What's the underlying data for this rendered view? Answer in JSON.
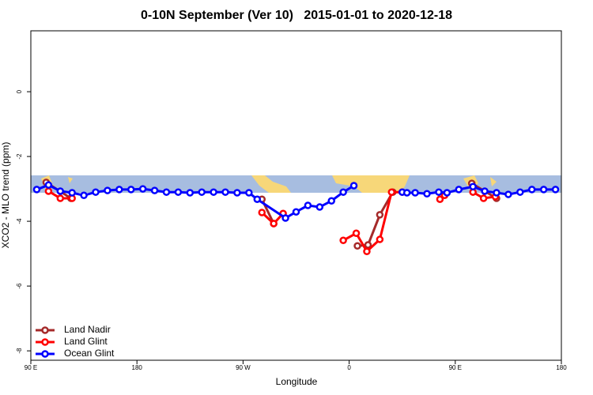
{
  "chart_data": {
    "type": "line",
    "title": "0-10N September (Ver 10)   2015-01-01 to 2020-12-18",
    "xlabel": "Longitude",
    "ylabel": "XCO2 - MLO trend (ppm)",
    "xlim": [
      90,
      540
    ],
    "ylim": [
      -8.29,
      1.88
    ],
    "xticks": [
      {
        "value": 90,
        "label": "90 E"
      },
      180,
      {
        "value": 270,
        "label": "90 W"
      },
      {
        "value": 360,
        "label": "0"
      },
      {
        "value": 450,
        "label": "90 E"
      },
      {
        "value": 540,
        "label": "180"
      }
    ],
    "yticks": [
      0,
      -2,
      -4,
      -6,
      -8
    ],
    "legend": "bottom-left",
    "series": [
      {
        "name": "Land Nadir",
        "color": "#a52a2a",
        "x": [
          103,
          124,
          null,
          286,
          296,
          null,
          367,
          376,
          386,
          397,
          null,
          464,
          485
        ],
        "values": [
          -2.8,
          -3.29,
          null,
          -3.32,
          -4.07,
          null,
          -4.76,
          -4.73,
          -3.8,
          -3.1,
          null,
          -2.83,
          -3.29
        ]
      },
      {
        "name": "Land Glint",
        "color": "#ff0000",
        "x": [
          105,
          115,
          125,
          null,
          286,
          296,
          304,
          null,
          355,
          366,
          375,
          386,
          396,
          405,
          null,
          437,
          441,
          null,
          465,
          474,
          484
        ],
        "values": [
          -3.07,
          -3.29,
          -3.29,
          null,
          -3.73,
          -4.07,
          -3.76,
          null,
          -4.59,
          -4.37,
          -4.93,
          -4.56,
          -3.1,
          -3.1,
          null,
          -3.32,
          -3.2,
          null,
          -3.1,
          -3.29,
          -3.24
        ]
      },
      {
        "name": "Ocean Glint",
        "color": "#0000ff",
        "x": [
          95,
          105,
          115,
          125,
          135,
          145,
          155,
          165,
          175,
          185,
          195,
          205,
          215,
          225,
          235,
          245,
          255,
          265,
          275,
          282,
          306,
          315,
          325,
          335,
          345,
          355,
          364,
          null,
          405,
          409,
          416,
          426,
          436,
          443,
          453,
          465,
          475,
          485,
          495,
          505,
          515,
          525,
          535
        ],
        "values": [
          -3.02,
          -2.88,
          -3.07,
          -3.12,
          -3.2,
          -3.1,
          -3.05,
          -3.02,
          -3.02,
          -3.0,
          -3.05,
          -3.1,
          -3.1,
          -3.12,
          -3.1,
          -3.1,
          -3.1,
          -3.12,
          -3.12,
          -3.32,
          -3.9,
          -3.71,
          -3.51,
          -3.56,
          -3.37,
          -3.1,
          -2.9,
          null,
          -3.1,
          -3.12,
          -3.12,
          -3.15,
          -3.1,
          -3.12,
          -3.02,
          -2.93,
          -3.07,
          -3.12,
          -3.17,
          -3.1,
          -3.02,
          -3.02,
          -3.02
        ]
      }
    ]
  }
}
